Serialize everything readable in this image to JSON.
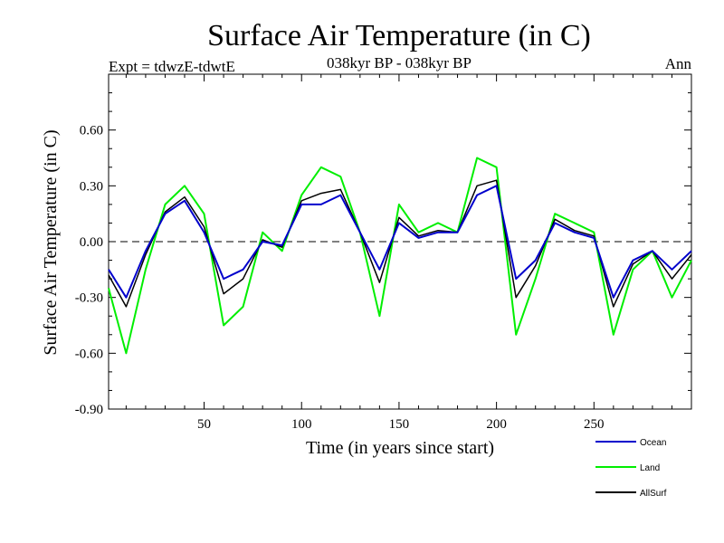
{
  "chart_data": {
    "type": "line",
    "title": "Surface Air Temperature (in C)",
    "subtitle": "038kyr BP - 038kyr BP",
    "expt_label": "Expt = tdwzE-tdwtE",
    "period_label": "Ann",
    "xlabel": "Time (in years since start)",
    "ylabel": "Surface Air Temperature (in C)",
    "xlim": [
      1,
      300
    ],
    "ylim": [
      -0.9,
      0.9
    ],
    "x_ticks": [
      50,
      100,
      150,
      200,
      250
    ],
    "x_tick_labels": [
      "50",
      "100",
      "150",
      "200",
      "250"
    ],
    "y_ticks": [
      -0.9,
      -0.6,
      -0.3,
      0.0,
      0.3,
      0.6
    ],
    "y_tick_labels": [
      "-0.90",
      "-0.60",
      "-0.30",
      "0.00",
      "0.30",
      "0.60"
    ],
    "zero_line": true,
    "grid": false,
    "legend_position": "bottom-right",
    "series": [
      {
        "name": "Ocean",
        "color": "#0000cc",
        "x": [
          1,
          10,
          20,
          30,
          40,
          50,
          60,
          70,
          80,
          90,
          100,
          110,
          120,
          130,
          140,
          150,
          160,
          170,
          180,
          190,
          200,
          210,
          220,
          230,
          240,
          250,
          260,
          270,
          280,
          290,
          300
        ],
        "y": [
          -0.15,
          -0.3,
          -0.05,
          0.15,
          0.22,
          0.05,
          -0.2,
          -0.15,
          0.0,
          -0.02,
          0.2,
          0.2,
          0.25,
          0.05,
          -0.15,
          0.1,
          0.02,
          0.05,
          0.05,
          0.25,
          0.3,
          -0.2,
          -0.1,
          0.1,
          0.05,
          0.02,
          -0.3,
          -0.1,
          -0.05,
          -0.15,
          -0.05
        ]
      },
      {
        "name": "Land",
        "color": "#00ee00",
        "x": [
          1,
          10,
          20,
          30,
          40,
          50,
          60,
          70,
          80,
          90,
          100,
          110,
          120,
          130,
          140,
          150,
          160,
          170,
          180,
          190,
          200,
          210,
          220,
          230,
          240,
          250,
          260,
          270,
          280,
          290,
          300
        ],
        "y": [
          -0.25,
          -0.6,
          -0.15,
          0.2,
          0.3,
          0.15,
          -0.45,
          -0.35,
          0.05,
          -0.05,
          0.25,
          0.4,
          0.35,
          0.05,
          -0.4,
          0.2,
          0.05,
          0.1,
          0.05,
          0.45,
          0.4,
          -0.5,
          -0.2,
          0.15,
          0.1,
          0.05,
          -0.5,
          -0.15,
          -0.05,
          -0.3,
          -0.1
        ]
      },
      {
        "name": "AllSurf",
        "color": "#000000",
        "x": [
          1,
          10,
          20,
          30,
          40,
          50,
          60,
          70,
          80,
          90,
          100,
          110,
          120,
          130,
          140,
          150,
          160,
          170,
          180,
          190,
          200,
          210,
          220,
          230,
          240,
          250,
          260,
          270,
          280,
          290,
          300
        ],
        "y": [
          -0.18,
          -0.35,
          -0.07,
          0.16,
          0.24,
          0.08,
          -0.28,
          -0.2,
          0.01,
          -0.03,
          0.22,
          0.26,
          0.28,
          0.05,
          -0.22,
          0.13,
          0.03,
          0.06,
          0.05,
          0.3,
          0.33,
          -0.3,
          -0.13,
          0.12,
          0.06,
          0.03,
          -0.35,
          -0.12,
          -0.05,
          -0.2,
          -0.07
        ]
      }
    ]
  }
}
